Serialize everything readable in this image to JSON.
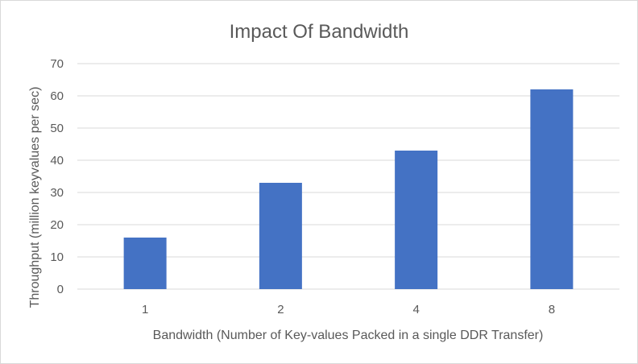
{
  "chart_data": {
    "type": "bar",
    "title": "Impact Of Bandwidth",
    "xlabel": "Bandwidth (Number of Key-values Packed in a single DDR Transfer)",
    "ylabel": "Throughput (million keyvalues per sec)",
    "categories": [
      "1",
      "2",
      "4",
      "8"
    ],
    "values": [
      16,
      33,
      43,
      62
    ],
    "ylim": [
      0,
      70
    ],
    "yticks": [
      0,
      10,
      20,
      30,
      40,
      50,
      60,
      70
    ],
    "grid": true,
    "legend": "none",
    "colors": {
      "bar": "#4472c4",
      "grid": "#d9d9d9",
      "text": "#595959"
    }
  }
}
